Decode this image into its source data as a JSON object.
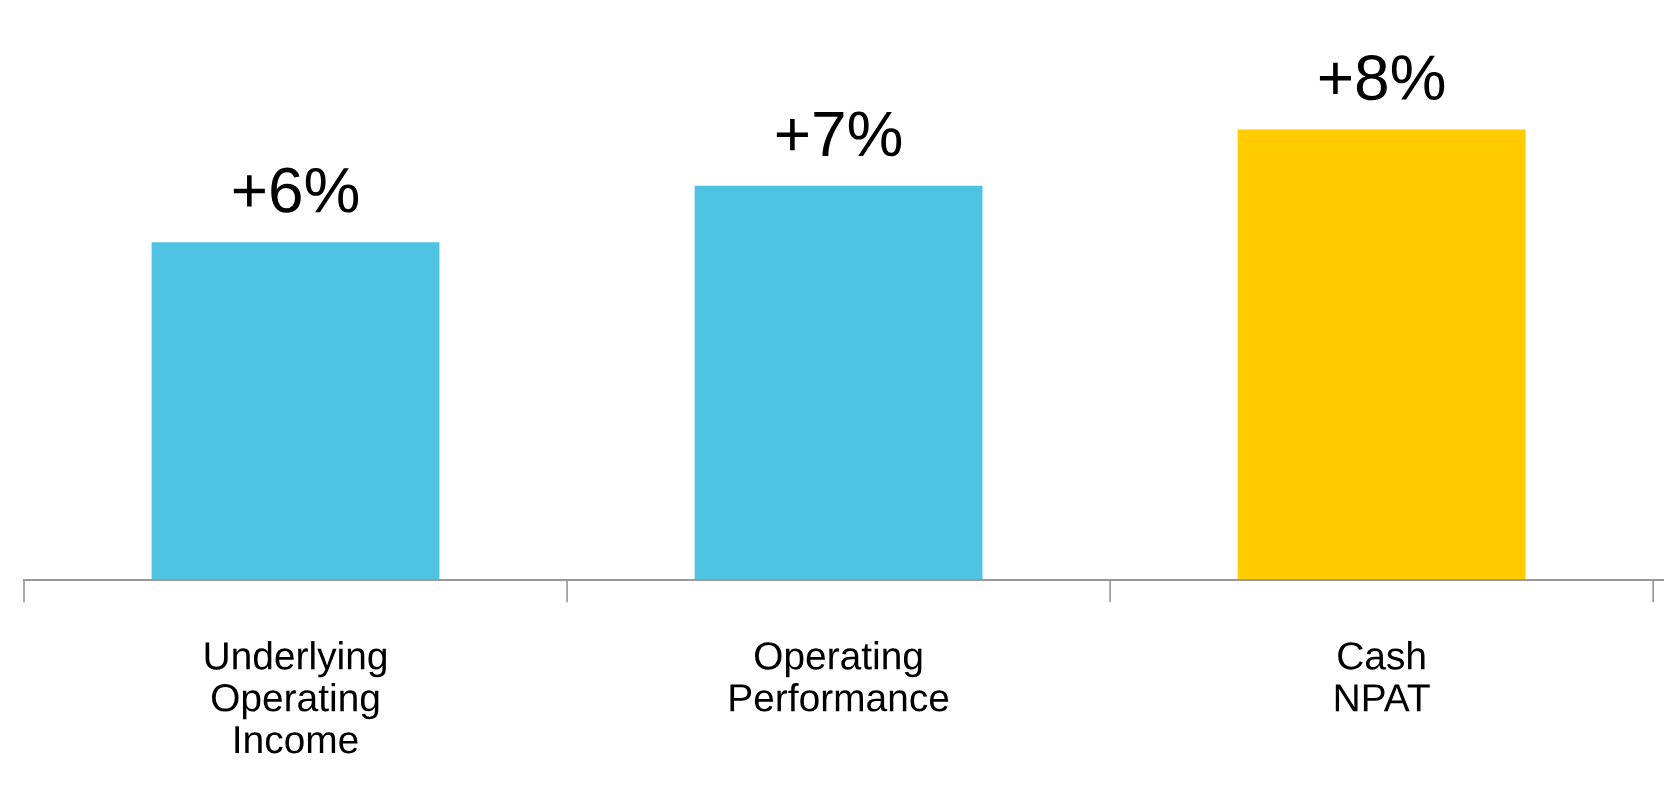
{
  "chart_data": {
    "type": "bar",
    "categories": [
      "Underlying\nOperating\nIncome",
      "Operating\nPerformance",
      "Cash\nNPAT"
    ],
    "values": [
      6,
      7,
      8
    ],
    "colors": [
      "#4fc4e2",
      "#4fc4e2",
      "#ffcc00"
    ],
    "value_labels": [
      "+6%",
      "+7%",
      "+8%"
    ],
    "grid": false,
    "legend": false
  }
}
